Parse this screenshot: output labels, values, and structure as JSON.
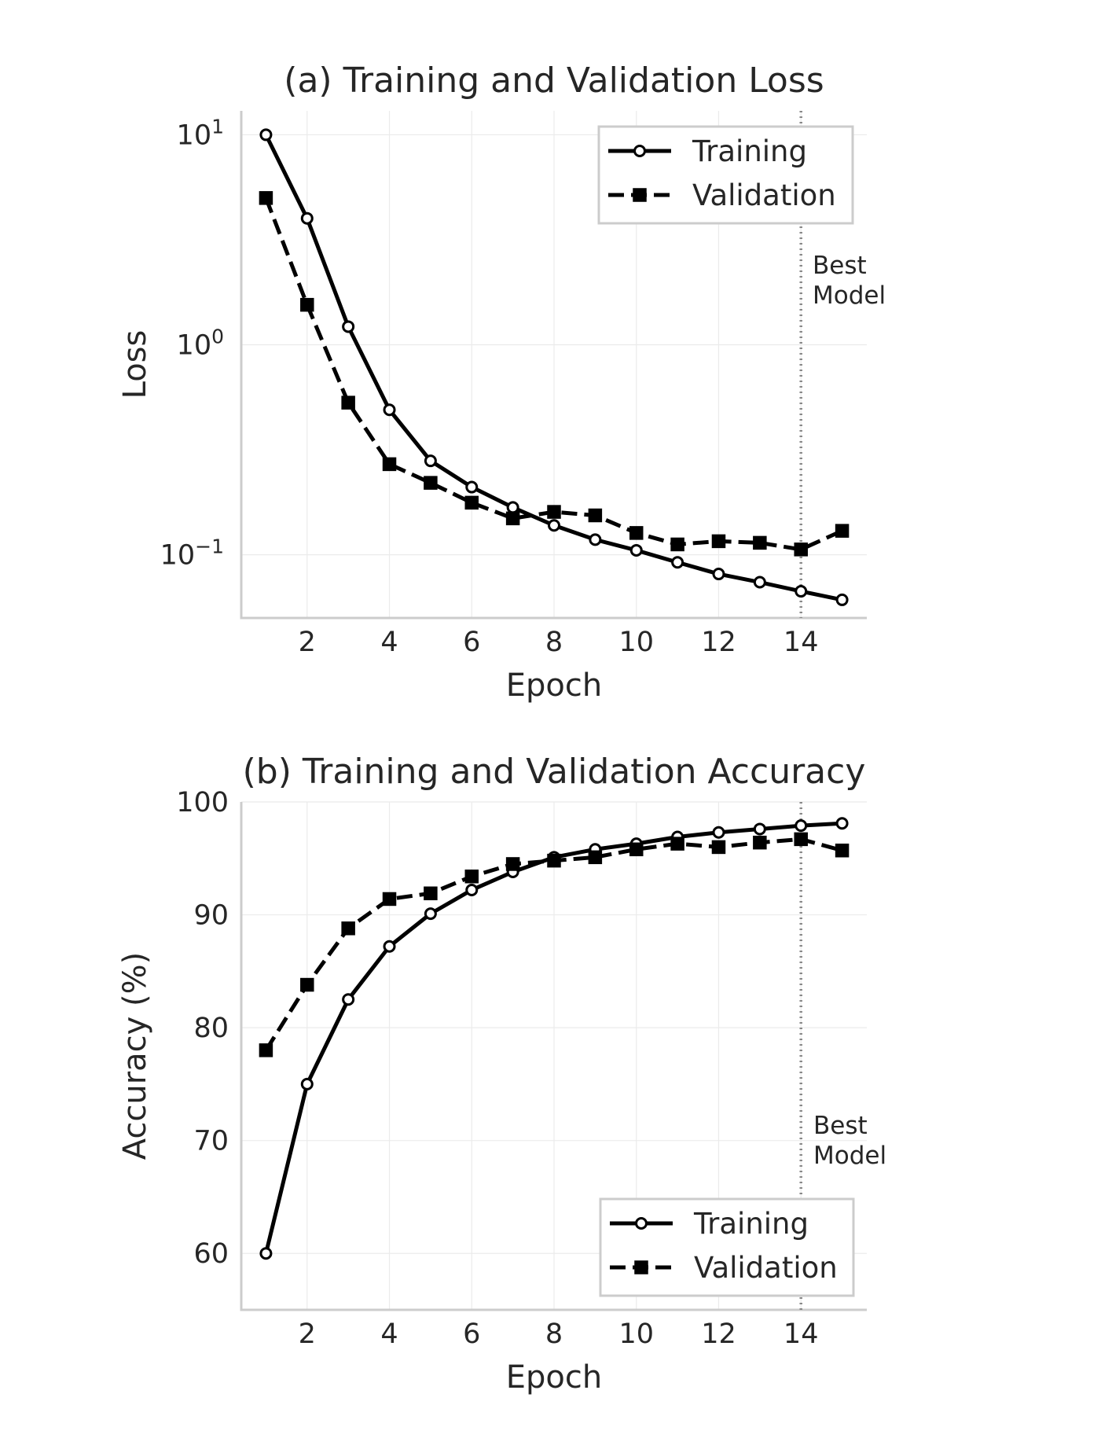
{
  "chart_data": [
    {
      "type": "line",
      "title": "(a) Training and Validation Loss",
      "xlabel": "Epoch",
      "ylabel": "Loss",
      "yscale": "log",
      "xlim": [
        0.4,
        15.6
      ],
      "ylim": [
        0.05,
        13
      ],
      "xticks": [
        2,
        4,
        6,
        8,
        10,
        12,
        14
      ],
      "xtick_labels": [
        "2",
        "4",
        "6",
        "8",
        "10",
        "12",
        "14"
      ],
      "yticks": [
        0.1,
        1,
        10
      ],
      "ytick_labels": [
        {
          "base": "10",
          "exp": "−1"
        },
        {
          "base": "10",
          "exp": "0"
        },
        {
          "base": "10",
          "exp": "1"
        }
      ],
      "grid": true,
      "legend_position": "top-right",
      "x": [
        1,
        2,
        3,
        4,
        5,
        6,
        7,
        8,
        9,
        10,
        11,
        12,
        13,
        14,
        15
      ],
      "series": [
        {
          "name": "Training",
          "style": "solid",
          "marker": "circle",
          "color": "#000000",
          "values": [
            10.0,
            4.0,
            1.22,
            0.49,
            0.28,
            0.21,
            0.168,
            0.138,
            0.118,
            0.105,
            0.092,
            0.081,
            0.074,
            0.067,
            0.061
          ]
        },
        {
          "name": "Validation",
          "style": "dashed",
          "marker": "square",
          "color": "#000000",
          "values": [
            5.0,
            1.55,
            0.53,
            0.27,
            0.22,
            0.177,
            0.149,
            0.16,
            0.154,
            0.127,
            0.112,
            0.116,
            0.114,
            0.106,
            0.13
          ]
        }
      ],
      "annotation": {
        "x": 14,
        "line_style": "dotted",
        "color": "#888888",
        "label_lines": [
          "Best",
          "Model"
        ]
      }
    },
    {
      "type": "line",
      "title": "(b) Training and Validation Accuracy",
      "xlabel": "Epoch",
      "ylabel": "Accuracy (%)",
      "yscale": "linear",
      "xlim": [
        0.4,
        15.6
      ],
      "ylim": [
        55,
        100
      ],
      "xticks": [
        2,
        4,
        6,
        8,
        10,
        12,
        14
      ],
      "xtick_labels": [
        "2",
        "4",
        "6",
        "8",
        "10",
        "12",
        "14"
      ],
      "yticks": [
        60,
        70,
        80,
        90,
        100
      ],
      "ytick_labels": [
        {
          "base": "60"
        },
        {
          "base": "70"
        },
        {
          "base": "80"
        },
        {
          "base": "90"
        },
        {
          "base": "100"
        }
      ],
      "grid": true,
      "legend_position": "bottom-right",
      "x": [
        1,
        2,
        3,
        4,
        5,
        6,
        7,
        8,
        9,
        10,
        11,
        12,
        13,
        14,
        15
      ],
      "series": [
        {
          "name": "Training",
          "style": "solid",
          "marker": "circle",
          "color": "#000000",
          "values": [
            60.0,
            75.0,
            82.5,
            87.2,
            90.1,
            92.2,
            93.8,
            95.1,
            95.8,
            96.3,
            96.9,
            97.3,
            97.6,
            97.9,
            98.1
          ]
        },
        {
          "name": "Validation",
          "style": "dashed",
          "marker": "square",
          "color": "#000000",
          "values": [
            78.0,
            83.8,
            88.8,
            91.4,
            91.9,
            93.4,
            94.5,
            94.8,
            95.1,
            95.8,
            96.3,
            96.0,
            96.4,
            96.7,
            95.7
          ]
        }
      ],
      "annotation": {
        "x": 14,
        "line_style": "dotted",
        "color": "#888888",
        "label_lines": [
          "Best",
          "Model"
        ]
      }
    }
  ]
}
